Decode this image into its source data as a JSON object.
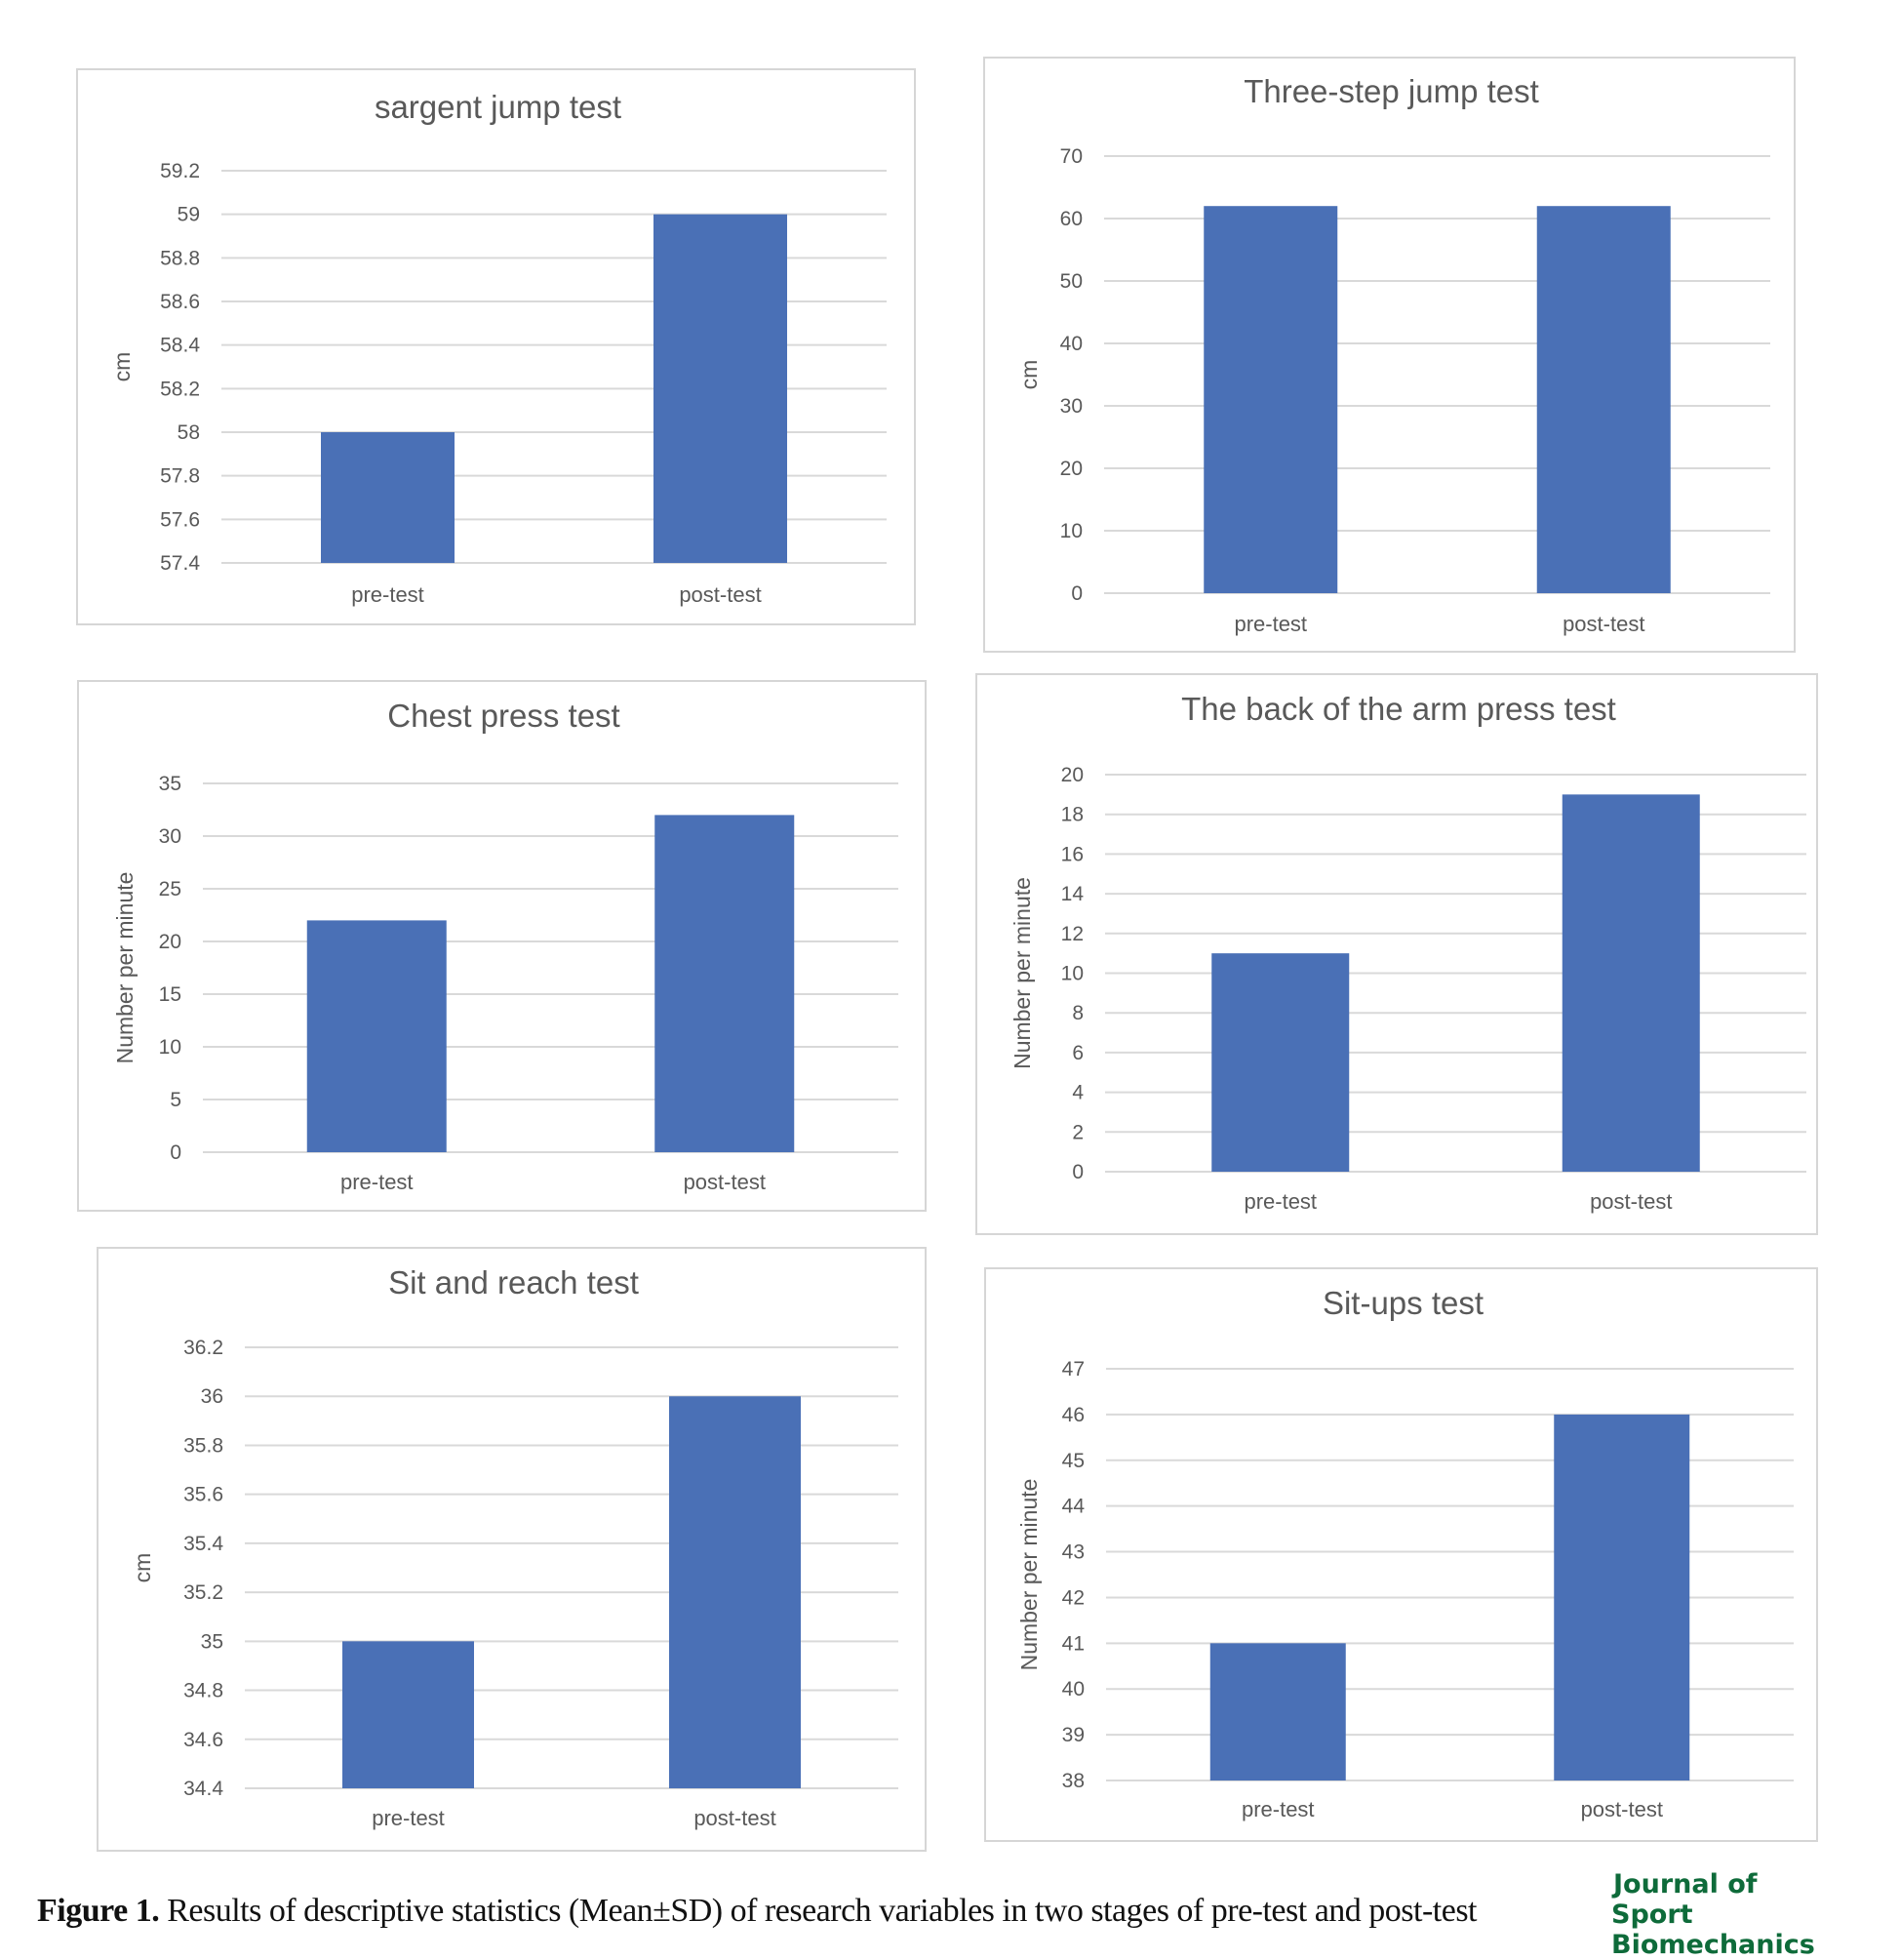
{
  "chart_data": [
    {
      "type": "bar",
      "title": "sargent jump test",
      "ylabel": "cm",
      "categories": [
        "pre-test",
        "post-test"
      ],
      "values": [
        58,
        59
      ],
      "ylim": [
        57.4,
        59.2
      ],
      "yticks": [
        "57.4",
        "57.6",
        "57.8",
        "58",
        "58.2",
        "58.4",
        "58.6",
        "58.8",
        "59",
        "59.2"
      ],
      "grid": true,
      "color": "#4a70b6"
    },
    {
      "type": "bar",
      "title": "Three-step jump test",
      "ylabel": "cm",
      "categories": [
        "pre-test",
        "post-test"
      ],
      "values": [
        62,
        62
      ],
      "ylim": [
        0,
        70
      ],
      "yticks": [
        "0",
        "10",
        "20",
        "30",
        "40",
        "50",
        "60",
        "70"
      ],
      "grid": true,
      "color": "#4a70b6"
    },
    {
      "type": "bar",
      "title": "Chest press test",
      "ylabel": "Number per minute",
      "categories": [
        "pre-test",
        "post-test"
      ],
      "values": [
        22,
        32
      ],
      "ylim": [
        0,
        35
      ],
      "yticks": [
        "0",
        "5",
        "10",
        "15",
        "20",
        "25",
        "30",
        "35"
      ],
      "grid": true,
      "color": "#4a70b6"
    },
    {
      "type": "bar",
      "title": "The back of the arm press test",
      "ylabel": "Number per minute",
      "categories": [
        "pre-test",
        "post-test"
      ],
      "values": [
        11,
        19
      ],
      "ylim": [
        0,
        20
      ],
      "yticks": [
        "0",
        "2",
        "4",
        "6",
        "8",
        "10",
        "12",
        "14",
        "16",
        "18",
        "20"
      ],
      "grid": true,
      "color": "#4a70b6"
    },
    {
      "type": "bar",
      "title": "Sit and reach test",
      "ylabel": "cm",
      "categories": [
        "pre-test",
        "post-test"
      ],
      "values": [
        35,
        36
      ],
      "ylim": [
        34.4,
        36.2
      ],
      "yticks": [
        "34.4",
        "34.6",
        "34.8",
        "35",
        "35.2",
        "35.4",
        "35.6",
        "35.8",
        "36",
        "36.2"
      ],
      "grid": true,
      "color": "#4a70b6"
    },
    {
      "type": "bar",
      "title": "Sit-ups test",
      "ylabel": "Number per minute",
      "categories": [
        "pre-test",
        "post-test"
      ],
      "values": [
        41,
        46
      ],
      "ylim": [
        38,
        47
      ],
      "yticks": [
        "38",
        "39",
        "40",
        "41",
        "42",
        "43",
        "44",
        "45",
        "46",
        "47"
      ],
      "grid": true,
      "color": "#4a70b6"
    }
  ],
  "caption": {
    "label": "Figure 1.",
    "text": " Results of descriptive statistics (Mean±SD) of research variables in two stages of pre-test and post-test"
  },
  "logo": {
    "line1": "Journal of",
    "line2": "Sport Biomechanics"
  },
  "colors": {
    "bar": "#4a70b6",
    "gridline": "#d9d9d9",
    "axis_text": "#595959",
    "logo": "#0e6b3a"
  }
}
